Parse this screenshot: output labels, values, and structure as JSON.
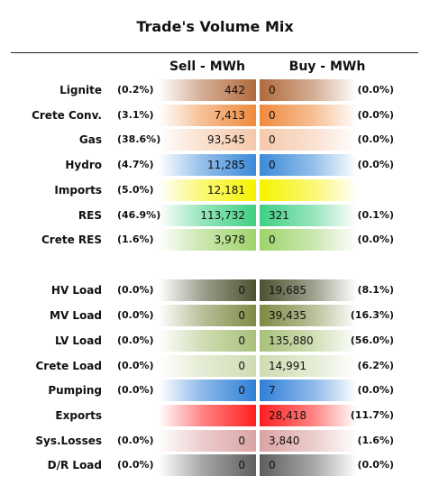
{
  "chart_data": {
    "type": "table",
    "title": "Trade's Volume Mix",
    "columns": [
      "Sell - MWh",
      "Buy - MWh"
    ],
    "rows": [
      {
        "label": "Lignite",
        "sell_pct": "(0.2%)",
        "sell": "442",
        "buy": "0",
        "buy_pct": "(0.0%)",
        "color": "#b06a3c"
      },
      {
        "label": "Crete Conv.",
        "sell_pct": "(3.1%)",
        "sell": "7,413",
        "buy": "0",
        "buy_pct": "(0.0%)",
        "color": "#ef8a3c"
      },
      {
        "label": "Gas",
        "sell_pct": "(38.6%)",
        "sell": "93,545",
        "buy": "0",
        "buy_pct": "(0.0%)",
        "color": "#f5c8aa"
      },
      {
        "label": "Hydro",
        "sell_pct": "(4.7%)",
        "sell": "11,285",
        "buy": "0",
        "buy_pct": "(0.0%)",
        "color": "#3b8ad9"
      },
      {
        "label": "Imports",
        "sell_pct": "(5.0%)",
        "sell": "12,181",
        "buy": "",
        "buy_pct": "",
        "color": "#f6f200"
      },
      {
        "label": "RES",
        "sell_pct": "(46.9%)",
        "sell": "113,732",
        "buy": "321",
        "buy_pct": "(0.1%)",
        "color": "#3fcf83"
      },
      {
        "label": "Crete RES",
        "sell_pct": "(1.6%)",
        "sell": "3,978",
        "buy": "0",
        "buy_pct": "(0.0%)",
        "color": "#9fd36b"
      },
      {
        "label": "HV Load",
        "sell_pct": "(0.0%)",
        "sell": "0",
        "buy": "19,685",
        "buy_pct": "(8.1%)",
        "color": "#4c5230"
      },
      {
        "label": "MV Load",
        "sell_pct": "(0.0%)",
        "sell": "0",
        "buy": "39,435",
        "buy_pct": "(16.3%)",
        "color": "#7f8a44"
      },
      {
        "label": "LV Load",
        "sell_pct": "(0.0%)",
        "sell": "0",
        "buy": "135,880",
        "buy_pct": "(56.0%)",
        "color": "#a9c179"
      },
      {
        "label": "Crete Load",
        "sell_pct": "(0.0%)",
        "sell": "0",
        "buy": "14,991",
        "buy_pct": "(6.2%)",
        "color": "#cfdcb2"
      },
      {
        "label": "Pumping",
        "sell_pct": "(0.0%)",
        "sell": "0",
        "buy": "7",
        "buy_pct": "(0.0%)",
        "color": "#2f7fd8"
      },
      {
        "label": "Exports",
        "sell_pct": "",
        "sell": "",
        "buy": "28,418",
        "buy_pct": "(11.7%)",
        "color": "#ff1e1e"
      },
      {
        "label": "Sys.Losses",
        "sell_pct": "(0.0%)",
        "sell": "0",
        "buy": "3,840",
        "buy_pct": "(1.6%)",
        "color": "#dba3a3"
      },
      {
        "label": "D/R Load",
        "sell_pct": "(0.0%)",
        "sell": "0",
        "buy": "0",
        "buy_pct": "(0.0%)",
        "color": "#5e5e5e"
      }
    ]
  }
}
